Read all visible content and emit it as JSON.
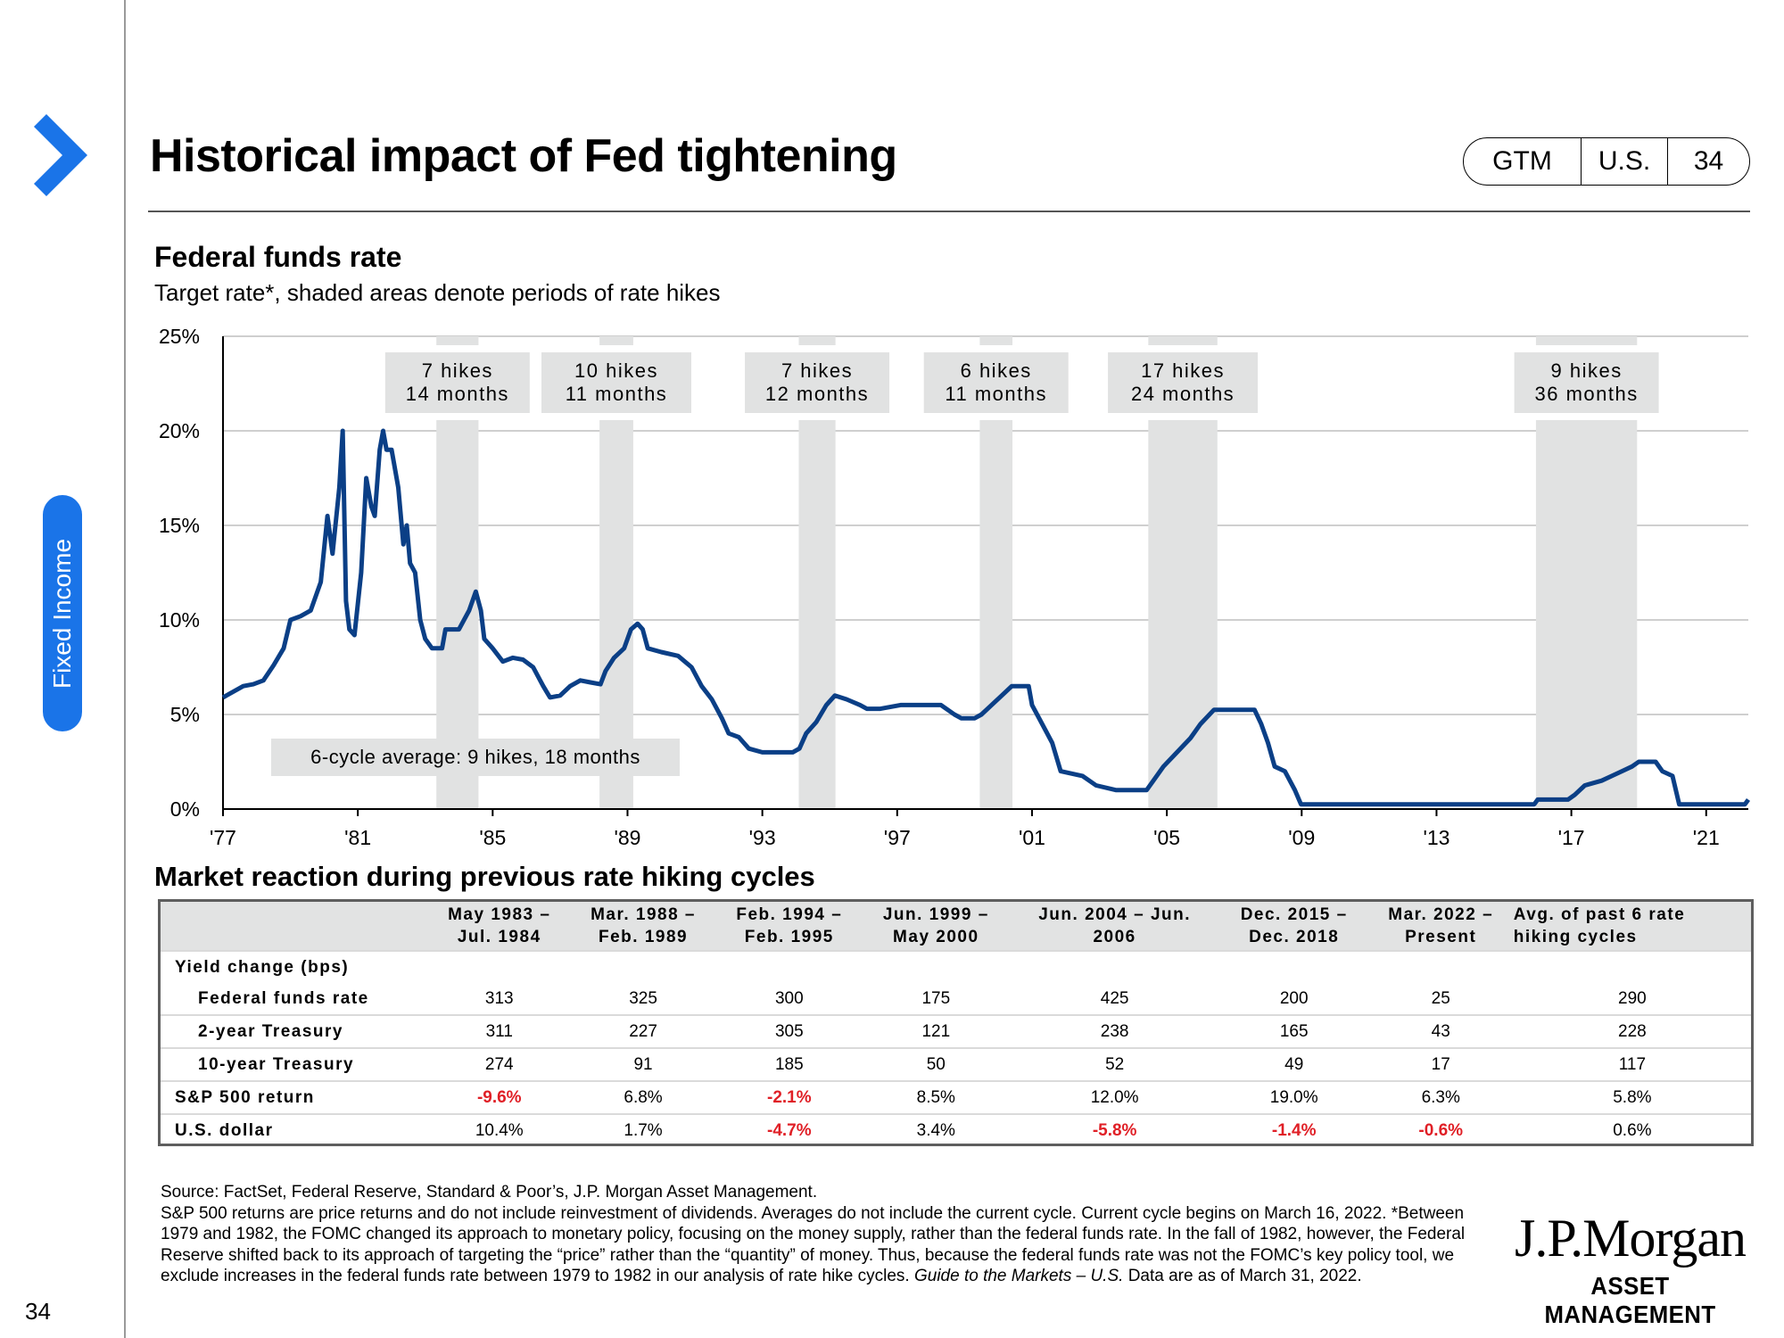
{
  "header": {
    "title": "Historical impact of Fed tightening",
    "pill": [
      "GTM",
      "U.S.",
      "34"
    ]
  },
  "sidebar": {
    "tab_label": "Fixed Income",
    "page_number": "34"
  },
  "colors": {
    "accent": "#1a74e8",
    "line": "#0b3f86",
    "shade": "#e1e2e2",
    "negative": "#e01f26"
  },
  "chart_data": {
    "type": "line",
    "title": "Federal funds rate",
    "subtitle": "Target rate*, shaded areas denote periods of rate hikes",
    "xlabel": "",
    "ylabel": "",
    "xlim": [
      1977,
      2022.25
    ],
    "ylim": [
      0,
      25
    ],
    "x_tick_labels": [
      "'77",
      "'81",
      "'85",
      "'89",
      "'93",
      "'97",
      "'01",
      "'05",
      "'09",
      "'13",
      "'17",
      "'21"
    ],
    "y_tick_labels": [
      "0%",
      "5%",
      "10%",
      "15%",
      "20%",
      "25%"
    ],
    "grid": true,
    "shaded_periods": [
      {
        "start": 1983.33,
        "end": 1984.58,
        "label1": "7 hikes",
        "label2": "14 months"
      },
      {
        "start": 1988.17,
        "end": 1989.17,
        "label1": "10 hikes",
        "label2": "11 months"
      },
      {
        "start": 1994.08,
        "end": 1995.17,
        "label1": "7 hikes",
        "label2": "12 months"
      },
      {
        "start": 1999.45,
        "end": 2000.42,
        "label1": "6 hikes",
        "label2": "11 months"
      },
      {
        "start": 2004.45,
        "end": 2006.5,
        "label1": "17 hikes",
        "label2": "24 months"
      },
      {
        "start": 2015.95,
        "end": 2018.95,
        "label1": "9 hikes",
        "label2": "36 months"
      }
    ],
    "annotation": "6-cycle average: 9 hikes, 18 months",
    "series": [
      {
        "values": [
          [
            1977.0,
            5.9
          ],
          [
            1977.3,
            6.2
          ],
          [
            1977.6,
            6.5
          ],
          [
            1977.9,
            6.6
          ],
          [
            1978.2,
            6.8
          ],
          [
            1978.5,
            7.6
          ],
          [
            1978.8,
            8.5
          ],
          [
            1979.0,
            10.0
          ],
          [
            1979.3,
            10.2
          ],
          [
            1979.6,
            10.5
          ],
          [
            1979.9,
            12.0
          ],
          [
            1980.1,
            15.5
          ],
          [
            1980.25,
            13.5
          ],
          [
            1980.45,
            17.0
          ],
          [
            1980.55,
            20.0
          ],
          [
            1980.65,
            11.0
          ],
          [
            1980.75,
            9.5
          ],
          [
            1980.9,
            9.2
          ],
          [
            1981.1,
            12.5
          ],
          [
            1981.25,
            17.5
          ],
          [
            1981.4,
            16.0
          ],
          [
            1981.5,
            15.5
          ],
          [
            1981.65,
            19.0
          ],
          [
            1981.75,
            20.0
          ],
          [
            1981.85,
            19.0
          ],
          [
            1982.0,
            19.0
          ],
          [
            1982.2,
            17.0
          ],
          [
            1982.35,
            14.0
          ],
          [
            1982.45,
            15.0
          ],
          [
            1982.55,
            13.0
          ],
          [
            1982.7,
            12.5
          ],
          [
            1982.85,
            10.0
          ],
          [
            1983.0,
            9.0
          ],
          [
            1983.2,
            8.5
          ],
          [
            1983.5,
            8.5
          ],
          [
            1983.6,
            9.5
          ],
          [
            1984.0,
            9.5
          ],
          [
            1984.3,
            10.5
          ],
          [
            1984.5,
            11.5
          ],
          [
            1984.65,
            10.5
          ],
          [
            1984.75,
            9.0
          ],
          [
            1985.0,
            8.5
          ],
          [
            1985.3,
            7.8
          ],
          [
            1985.6,
            8.0
          ],
          [
            1985.9,
            7.9
          ],
          [
            1986.2,
            7.5
          ],
          [
            1986.5,
            6.5
          ],
          [
            1986.7,
            5.9
          ],
          [
            1987.0,
            6.0
          ],
          [
            1987.3,
            6.5
          ],
          [
            1987.6,
            6.8
          ],
          [
            1987.9,
            6.7
          ],
          [
            1988.2,
            6.6
          ],
          [
            1988.35,
            7.3
          ],
          [
            1988.6,
            8.0
          ],
          [
            1988.9,
            8.5
          ],
          [
            1989.1,
            9.5
          ],
          [
            1989.3,
            9.8
          ],
          [
            1989.45,
            9.5
          ],
          [
            1989.6,
            8.5
          ],
          [
            1990.0,
            8.3
          ],
          [
            1990.5,
            8.1
          ],
          [
            1990.9,
            7.5
          ],
          [
            1991.2,
            6.5
          ],
          [
            1991.5,
            5.8
          ],
          [
            1991.8,
            4.8
          ],
          [
            1992.0,
            4.0
          ],
          [
            1992.3,
            3.8
          ],
          [
            1992.6,
            3.2
          ],
          [
            1993.0,
            3.0
          ],
          [
            1993.9,
            3.0
          ],
          [
            1994.1,
            3.2
          ],
          [
            1994.3,
            4.0
          ],
          [
            1994.6,
            4.6
          ],
          [
            1994.9,
            5.5
          ],
          [
            1995.15,
            6.0
          ],
          [
            1995.5,
            5.8
          ],
          [
            1995.9,
            5.5
          ],
          [
            1996.1,
            5.3
          ],
          [
            1996.5,
            5.3
          ],
          [
            1997.1,
            5.5
          ],
          [
            1997.5,
            5.5
          ],
          [
            1998.3,
            5.5
          ],
          [
            1998.7,
            5.0
          ],
          [
            1998.9,
            4.8
          ],
          [
            1999.3,
            4.8
          ],
          [
            1999.5,
            5.0
          ],
          [
            1999.8,
            5.5
          ],
          [
            2000.1,
            6.0
          ],
          [
            2000.4,
            6.5
          ],
          [
            2000.6,
            6.5
          ],
          [
            2000.9,
            6.5
          ],
          [
            2001.0,
            5.5
          ],
          [
            2001.3,
            4.5
          ],
          [
            2001.6,
            3.5
          ],
          [
            2001.85,
            2.0
          ],
          [
            2002.5,
            1.75
          ],
          [
            2002.9,
            1.25
          ],
          [
            2003.5,
            1.0
          ],
          [
            2004.4,
            1.0
          ],
          [
            2004.6,
            1.5
          ],
          [
            2004.9,
            2.25
          ],
          [
            2005.3,
            3.0
          ],
          [
            2005.7,
            3.75
          ],
          [
            2006.0,
            4.5
          ],
          [
            2006.4,
            5.25
          ],
          [
            2007.6,
            5.25
          ],
          [
            2007.8,
            4.5
          ],
          [
            2008.0,
            3.5
          ],
          [
            2008.2,
            2.25
          ],
          [
            2008.5,
            2.0
          ],
          [
            2008.8,
            1.0
          ],
          [
            2008.98,
            0.25
          ],
          [
            2015.9,
            0.25
          ],
          [
            2016.0,
            0.5
          ],
          [
            2016.9,
            0.5
          ],
          [
            2017.1,
            0.75
          ],
          [
            2017.4,
            1.25
          ],
          [
            2017.9,
            1.5
          ],
          [
            2018.2,
            1.75
          ],
          [
            2018.5,
            2.0
          ],
          [
            2018.8,
            2.25
          ],
          [
            2019.0,
            2.5
          ],
          [
            2019.5,
            2.5
          ],
          [
            2019.7,
            2.0
          ],
          [
            2020.0,
            1.75
          ],
          [
            2020.2,
            0.25
          ],
          [
            2022.15,
            0.25
          ],
          [
            2022.25,
            0.5
          ]
        ]
      }
    ]
  },
  "market": {
    "title": "Market reaction during previous rate hiking cycles",
    "columns": [
      [
        "May 1983 –",
        "Jul. 1984"
      ],
      [
        "Mar. 1988 –",
        "Feb. 1989"
      ],
      [
        "Feb. 1994 –",
        "Feb. 1995"
      ],
      [
        "Jun. 1999 –",
        "May 2000"
      ],
      [
        "Jun. 2004 – Jun.",
        "2006"
      ],
      [
        "Dec. 2015 –",
        "Dec. 2018"
      ],
      [
        "Mar. 2022 –",
        "Present"
      ],
      [
        "Avg. of past 6 rate",
        "hiking cycles"
      ]
    ],
    "group_label": "Yield change (bps)",
    "rows": [
      {
        "label": "Federal funds rate",
        "indent": true,
        "values": [
          "313",
          "325",
          "300",
          "175",
          "425",
          "200",
          "25",
          "290"
        ]
      },
      {
        "label": "2-year Treasury",
        "indent": true,
        "values": [
          "311",
          "227",
          "305",
          "121",
          "238",
          "165",
          "43",
          "228"
        ]
      },
      {
        "label": "10-year Treasury",
        "indent": true,
        "values": [
          "274",
          "91",
          "185",
          "50",
          "52",
          "49",
          "17",
          "117"
        ]
      },
      {
        "label": "S&P 500 return",
        "indent": false,
        "values": [
          "-9.6%",
          "6.8%",
          "-2.1%",
          "8.5%",
          "12.0%",
          "19.0%",
          "6.3%",
          "5.8%"
        ]
      },
      {
        "label": "U.S. dollar",
        "indent": false,
        "values": [
          "10.4%",
          "1.7%",
          "-4.7%",
          "3.4%",
          "-5.8%",
          "-1.4%",
          "-0.6%",
          "0.6%"
        ]
      }
    ]
  },
  "footnote": {
    "source": "Source: FactSet, Federal Reserve, Standard & Poor’s, J.P. Morgan Asset Management.",
    "body": "S&P 500 returns are price returns and do not include reinvestment of dividends. Averages do not include the current cycle. Current cycle begins on March 16, 2022. *Between 1979 and 1982, the FOMC changed its approach to monetary policy, focusing on the money supply, rather than the federal funds rate. In the fall of 1982, however, the Federal Reserve shifted back to its approach of targeting the “price” rather than the “quantity” of money. Thus, because the federal funds rate was not the FOMC’s key policy tool, we exclude increases in the federal funds rate between 1979 to 1982 in our analysis of rate hike cycles.",
    "guide_italic": "Guide to the Markets – U.S.",
    "guide_rest": " Data are as of March 31, 2022."
  },
  "logo": {
    "line1": "J.P.Morgan",
    "line2": "ASSET MANAGEMENT"
  }
}
